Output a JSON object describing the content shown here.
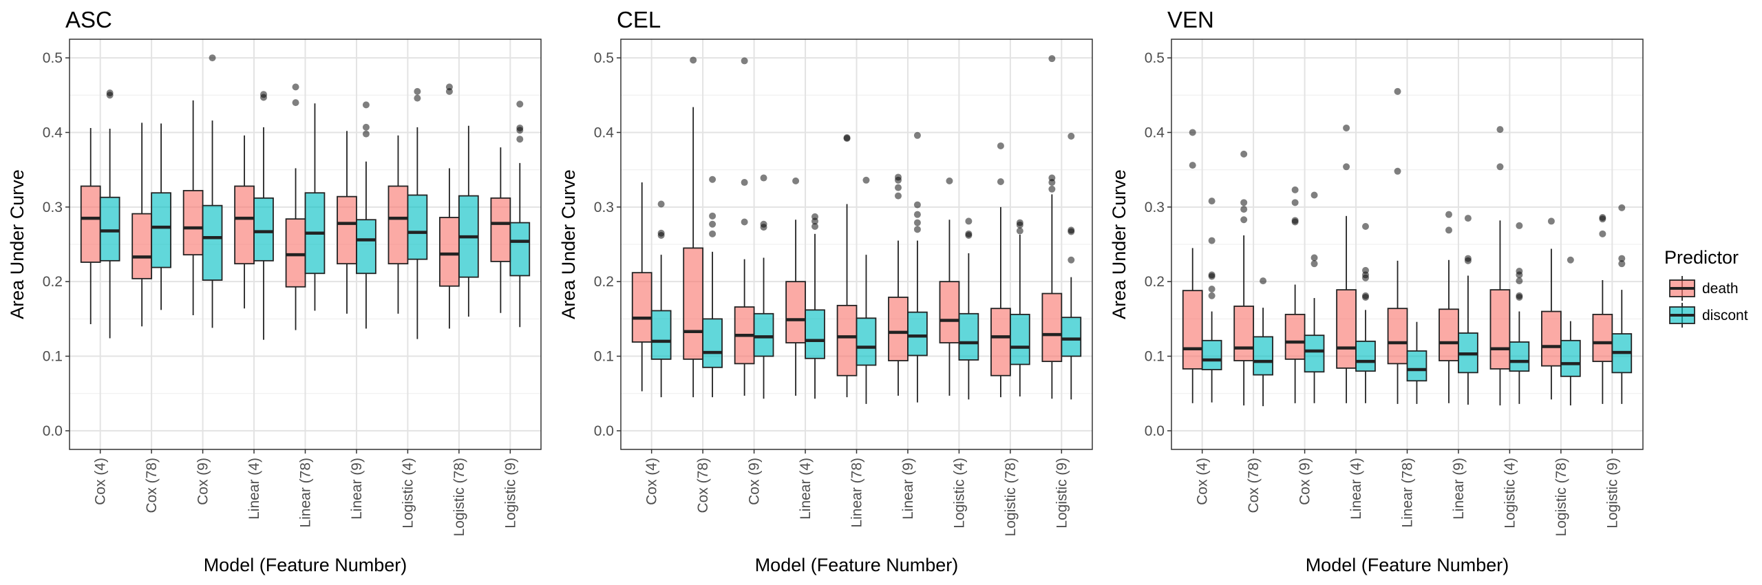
{
  "chart_data": {
    "type": "boxplot",
    "ylabel": "Area Under Curve",
    "xlabel": "Model (Feature Number)",
    "ylim": [
      -0.025,
      0.525
    ],
    "yticks": [
      0.0,
      0.1,
      0.2,
      0.3,
      0.4,
      0.5
    ],
    "ytick_labels": [
      "0.0",
      "0.1",
      "0.2",
      "0.3",
      "0.4",
      "0.5"
    ],
    "grid": true,
    "categories": [
      "Cox (4)",
      "Cox (78)",
      "Cox (9)",
      "Linear (4)",
      "Linear (78)",
      "Linear (9)",
      "Logistic (4)",
      "Logistic (78)",
      "Logistic (9)"
    ],
    "legend": {
      "title": "Predictor",
      "position": "right",
      "entries": [
        {
          "name": "death",
          "color": "#F8766D"
        },
        {
          "name": "discont",
          "color": "#00BFC4"
        }
      ]
    },
    "panels": [
      {
        "title": "ASC",
        "series": [
          {
            "name": "death",
            "boxes": [
              {
                "min": 0.143,
                "q1": 0.226,
                "median": 0.285,
                "q3": 0.328,
                "max": 0.406,
                "outliers": []
              },
              {
                "min": 0.14,
                "q1": 0.204,
                "median": 0.233,
                "q3": 0.291,
                "max": 0.413,
                "outliers": []
              },
              {
                "min": 0.155,
                "q1": 0.236,
                "median": 0.272,
                "q3": 0.322,
                "max": 0.443,
                "outliers": []
              },
              {
                "min": 0.164,
                "q1": 0.224,
                "median": 0.285,
                "q3": 0.328,
                "max": 0.396,
                "outliers": []
              },
              {
                "min": 0.135,
                "q1": 0.193,
                "median": 0.236,
                "q3": 0.284,
                "max": 0.352,
                "outliers": [
                  0.44,
                  0.461
                ]
              },
              {
                "min": 0.157,
                "q1": 0.224,
                "median": 0.278,
                "q3": 0.314,
                "max": 0.402,
                "outliers": []
              },
              {
                "min": 0.157,
                "q1": 0.224,
                "median": 0.285,
                "q3": 0.328,
                "max": 0.396,
                "outliers": []
              },
              {
                "min": 0.137,
                "q1": 0.194,
                "median": 0.237,
                "q3": 0.286,
                "max": 0.352,
                "outliers": [
                  0.455,
                  0.461
                ]
              },
              {
                "min": 0.158,
                "q1": 0.227,
                "median": 0.278,
                "q3": 0.312,
                "max": 0.38,
                "outliers": []
              }
            ]
          },
          {
            "name": "discont",
            "boxes": [
              {
                "min": 0.124,
                "q1": 0.228,
                "median": 0.268,
                "q3": 0.313,
                "max": 0.405,
                "outliers": [
                  0.45,
                  0.453
                ]
              },
              {
                "min": 0.162,
                "q1": 0.219,
                "median": 0.273,
                "q3": 0.319,
                "max": 0.412,
                "outliers": []
              },
              {
                "min": 0.138,
                "q1": 0.202,
                "median": 0.259,
                "q3": 0.302,
                "max": 0.416,
                "outliers": [
                  0.5
                ]
              },
              {
                "min": 0.122,
                "q1": 0.228,
                "median": 0.267,
                "q3": 0.312,
                "max": 0.407,
                "outliers": [
                  0.447,
                  0.451
                ]
              },
              {
                "min": 0.161,
                "q1": 0.211,
                "median": 0.265,
                "q3": 0.319,
                "max": 0.439,
                "outliers": []
              },
              {
                "min": 0.137,
                "q1": 0.211,
                "median": 0.256,
                "q3": 0.283,
                "max": 0.361,
                "outliers": [
                  0.398,
                  0.407,
                  0.437
                ]
              },
              {
                "min": 0.123,
                "q1": 0.23,
                "median": 0.266,
                "q3": 0.316,
                "max": 0.407,
                "outliers": [
                  0.446,
                  0.455
                ]
              },
              {
                "min": 0.153,
                "q1": 0.206,
                "median": 0.26,
                "q3": 0.315,
                "max": 0.409,
                "outliers": []
              },
              {
                "min": 0.139,
                "q1": 0.208,
                "median": 0.254,
                "q3": 0.279,
                "max": 0.359,
                "outliers": [
                  0.391,
                  0.403,
                  0.406,
                  0.438
                ]
              }
            ]
          }
        ]
      },
      {
        "title": "CEL",
        "series": [
          {
            "name": "death",
            "boxes": [
              {
                "min": 0.053,
                "q1": 0.119,
                "median": 0.151,
                "q3": 0.212,
                "max": 0.333,
                "outliers": []
              },
              {
                "min": 0.045,
                "q1": 0.096,
                "median": 0.133,
                "q3": 0.245,
                "max": 0.434,
                "outliers": [
                  0.497
                ]
              },
              {
                "min": 0.047,
                "q1": 0.09,
                "median": 0.128,
                "q3": 0.166,
                "max": 0.23,
                "outliers": [
                  0.28,
                  0.333,
                  0.496
                ]
              },
              {
                "min": 0.047,
                "q1": 0.118,
                "median": 0.149,
                "q3": 0.2,
                "max": 0.283,
                "outliers": [
                  0.335
                ]
              },
              {
                "min": 0.045,
                "q1": 0.074,
                "median": 0.126,
                "q3": 0.168,
                "max": 0.304,
                "outliers": [
                  0.392,
                  0.393
                ]
              },
              {
                "min": 0.047,
                "q1": 0.094,
                "median": 0.132,
                "q3": 0.179,
                "max": 0.255,
                "outliers": [
                  0.315,
                  0.326,
                  0.336,
                  0.34
                ]
              },
              {
                "min": 0.047,
                "q1": 0.118,
                "median": 0.148,
                "q3": 0.2,
                "max": 0.283,
                "outliers": [
                  0.335
                ]
              },
              {
                "min": 0.045,
                "q1": 0.074,
                "median": 0.126,
                "q3": 0.164,
                "max": 0.3,
                "outliers": [
                  0.334,
                  0.382
                ]
              },
              {
                "min": 0.043,
                "q1": 0.093,
                "median": 0.129,
                "q3": 0.184,
                "max": 0.317,
                "outliers": [
                  0.324,
                  0.333,
                  0.339,
                  0.499
                ]
              }
            ]
          },
          {
            "name": "discont",
            "boxes": [
              {
                "min": 0.045,
                "q1": 0.096,
                "median": 0.12,
                "q3": 0.161,
                "max": 0.236,
                "outliers": [
                  0.262,
                  0.265,
                  0.304
                ]
              },
              {
                "min": 0.045,
                "q1": 0.085,
                "median": 0.105,
                "q3": 0.15,
                "max": 0.24,
                "outliers": [
                  0.264,
                  0.277,
                  0.288,
                  0.337
                ]
              },
              {
                "min": 0.043,
                "q1": 0.1,
                "median": 0.126,
                "q3": 0.157,
                "max": 0.232,
                "outliers": [
                  0.273,
                  0.277,
                  0.339
                ]
              },
              {
                "min": 0.043,
                "q1": 0.097,
                "median": 0.121,
                "q3": 0.162,
                "max": 0.264,
                "outliers": [
                  0.274,
                  0.281,
                  0.287
                ]
              },
              {
                "min": 0.036,
                "q1": 0.088,
                "median": 0.112,
                "q3": 0.151,
                "max": 0.236,
                "outliers": [
                  0.336
                ]
              },
              {
                "min": 0.038,
                "q1": 0.101,
                "median": 0.127,
                "q3": 0.159,
                "max": 0.255,
                "outliers": [
                  0.27,
                  0.279,
                  0.29,
                  0.303,
                  0.396
                ]
              },
              {
                "min": 0.042,
                "q1": 0.095,
                "median": 0.118,
                "q3": 0.157,
                "max": 0.238,
                "outliers": [
                  0.262,
                  0.264,
                  0.281
                ]
              },
              {
                "min": 0.046,
                "q1": 0.089,
                "median": 0.112,
                "q3": 0.156,
                "max": 0.263,
                "outliers": [
                  0.268,
                  0.276,
                  0.279
                ]
              },
              {
                "min": 0.042,
                "q1": 0.1,
                "median": 0.123,
                "q3": 0.152,
                "max": 0.206,
                "outliers": [
                  0.229,
                  0.267,
                  0.269,
                  0.395
                ]
              }
            ]
          }
        ]
      },
      {
        "title": "VEN",
        "series": [
          {
            "name": "death",
            "boxes": [
              {
                "min": 0.037,
                "q1": 0.083,
                "median": 0.11,
                "q3": 0.188,
                "max": 0.245,
                "outliers": [
                  0.356,
                  0.4
                ]
              },
              {
                "min": 0.034,
                "q1": 0.094,
                "median": 0.111,
                "q3": 0.167,
                "max": 0.262,
                "outliers": [
                  0.283,
                  0.297,
                  0.306,
                  0.371
                ]
              },
              {
                "min": 0.037,
                "q1": 0.096,
                "median": 0.119,
                "q3": 0.156,
                "max": 0.196,
                "outliers": [
                  0.28,
                  0.282,
                  0.306,
                  0.323
                ]
              },
              {
                "min": 0.037,
                "q1": 0.084,
                "median": 0.111,
                "q3": 0.189,
                "max": 0.288,
                "outliers": [
                  0.354,
                  0.406
                ]
              },
              {
                "min": 0.036,
                "q1": 0.09,
                "median": 0.118,
                "q3": 0.164,
                "max": 0.228,
                "outliers": [
                  0.348,
                  0.455
                ]
              },
              {
                "min": 0.037,
                "q1": 0.094,
                "median": 0.118,
                "q3": 0.163,
                "max": 0.229,
                "outliers": [
                  0.269,
                  0.29
                ]
              },
              {
                "min": 0.034,
                "q1": 0.083,
                "median": 0.11,
                "q3": 0.189,
                "max": 0.282,
                "outliers": [
                  0.354,
                  0.404
                ]
              },
              {
                "min": 0.042,
                "q1": 0.087,
                "median": 0.113,
                "q3": 0.16,
                "max": 0.244,
                "outliers": [
                  0.281
                ]
              },
              {
                "min": 0.036,
                "q1": 0.093,
                "median": 0.118,
                "q3": 0.156,
                "max": 0.202,
                "outliers": [
                  0.264,
                  0.284,
                  0.286
                ]
              }
            ]
          },
          {
            "name": "discont",
            "boxes": [
              {
                "min": 0.038,
                "q1": 0.082,
                "median": 0.095,
                "q3": 0.121,
                "max": 0.16,
                "outliers": [
                  0.181,
                  0.19,
                  0.207,
                  0.209,
                  0.255,
                  0.308
                ]
              },
              {
                "min": 0.033,
                "q1": 0.075,
                "median": 0.093,
                "q3": 0.126,
                "max": 0.165,
                "outliers": [
                  0.201
                ]
              },
              {
                "min": 0.037,
                "q1": 0.079,
                "median": 0.107,
                "q3": 0.128,
                "max": 0.178,
                "outliers": [
                  0.224,
                  0.232,
                  0.316
                ]
              },
              {
                "min": 0.037,
                "q1": 0.08,
                "median": 0.093,
                "q3": 0.12,
                "max": 0.162,
                "outliers": [
                  0.179,
                  0.181,
                  0.205,
                  0.209,
                  0.215,
                  0.274
                ]
              },
              {
                "min": 0.036,
                "q1": 0.067,
                "median": 0.082,
                "q3": 0.107,
                "max": 0.146,
                "outliers": []
              },
              {
                "min": 0.035,
                "q1": 0.078,
                "median": 0.103,
                "q3": 0.131,
                "max": 0.208,
                "outliers": [
                  0.228,
                  0.231,
                  0.285
                ]
              },
              {
                "min": 0.036,
                "q1": 0.08,
                "median": 0.093,
                "q3": 0.119,
                "max": 0.16,
                "outliers": [
                  0.179,
                  0.181,
                  0.201,
                  0.209,
                  0.214,
                  0.275
                ]
              },
              {
                "min": 0.034,
                "q1": 0.073,
                "median": 0.09,
                "q3": 0.121,
                "max": 0.147,
                "outliers": [
                  0.229
                ]
              },
              {
                "min": 0.036,
                "q1": 0.078,
                "median": 0.105,
                "q3": 0.13,
                "max": 0.189,
                "outliers": [
                  0.224,
                  0.231,
                  0.299
                ]
              }
            ]
          }
        ]
      }
    ]
  }
}
